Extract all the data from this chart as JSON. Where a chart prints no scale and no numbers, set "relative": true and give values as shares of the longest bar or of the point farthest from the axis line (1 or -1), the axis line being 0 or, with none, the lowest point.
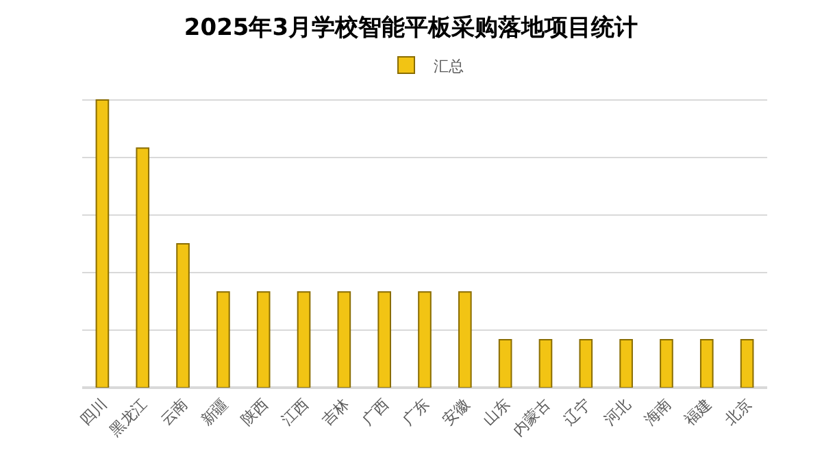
{
  "chart_data": {
    "type": "bar",
    "title": "2025年3月学校智能平板采购落地项目统计",
    "categories": [
      "四川",
      "黑龙江",
      "云南",
      "新疆",
      "陕西",
      "江西",
      "吉林",
      "广西",
      "广东",
      "安徽",
      "山东",
      "内蒙古",
      "辽宁",
      "河北",
      "海南",
      "福建",
      "北京"
    ],
    "series": [
      {
        "name": "汇总",
        "color": "#f2c414",
        "values": [
          1,
          0.833,
          0.5,
          0.333,
          0.333,
          0.333,
          0.333,
          0.333,
          0.333,
          0.333,
          0.167,
          0.167,
          0.167,
          0.167,
          0.167,
          0.167,
          0.167
        ]
      }
    ],
    "relative": true,
    "grid": "y",
    "legend": "top"
  }
}
